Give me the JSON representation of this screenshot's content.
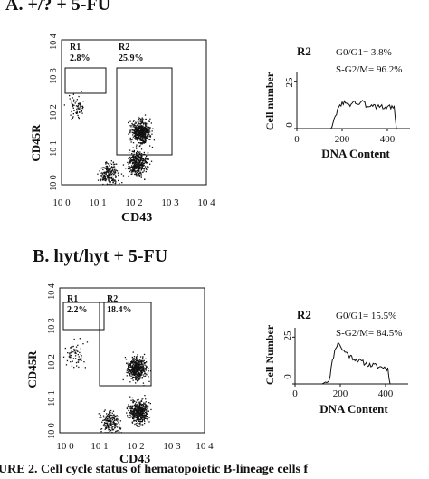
{
  "panels": [
    {
      "title": "A. +/? + 5-FU",
      "dot_plot": {
        "ylabel": "CD45R",
        "xlabel": "CD43",
        "ticks": [
          "10 0",
          "10 1",
          "10 2",
          "10 3",
          "10 4"
        ],
        "gates": [
          {
            "name": "R1",
            "percent": "2.8%"
          },
          {
            "name": "R2",
            "percent": "25.9%"
          }
        ]
      },
      "histogram": {
        "region": "R2",
        "g0g1": "G0/G1= 3.8%",
        "sg2m": "S-G2/M= 96.2%",
        "ylabel": "Cell number",
        "xlabel": "DNA Content",
        "y_ticks": [
          "0",
          "25"
        ],
        "x_ticks": [
          "0",
          "200",
          "400"
        ]
      }
    },
    {
      "title": "B. hyt/hyt + 5-FU",
      "dot_plot": {
        "ylabel": "CD45R",
        "xlabel": "CD43",
        "ticks": [
          "10 0",
          "10 1",
          "10 2",
          "10 3",
          "10 4"
        ],
        "gates": [
          {
            "name": "R1",
            "percent": "2.2%"
          },
          {
            "name": "R2",
            "percent": "18.4%"
          }
        ]
      },
      "histogram": {
        "region": "R2",
        "g0g1": "G0/G1= 15.5%",
        "sg2m": "S-G2/M= 84.5%",
        "ylabel": "Cell Number",
        "xlabel": "DNA Content",
        "y_ticks": [
          "0",
          "25"
        ],
        "x_ticks": [
          "0",
          "200",
          "400"
        ]
      }
    }
  ],
  "caption": "URE 2.    Cell cycle status of hematopoietic B-lineage cells f",
  "chart_data": [
    {
      "type": "scatter",
      "title": "A. +/? + 5-FU",
      "xlabel": "CD43",
      "ylabel": "CD45R",
      "xlim": [
        1,
        10000
      ],
      "ylim": [
        1,
        10000
      ],
      "log_scale": true,
      "gates": [
        {
          "name": "R1",
          "percent": 2.8,
          "x": [
            1,
            8
          ],
          "y": [
            60,
            300
          ]
        },
        {
          "name": "R2",
          "percent": 25.9,
          "x": [
            20,
            600
          ],
          "y": [
            8,
            300
          ]
        }
      ],
      "clusters": [
        {
          "x": 150,
          "y": 30,
          "n": 520
        },
        {
          "x": 120,
          "y": 4,
          "n": 380
        },
        {
          "x": 20,
          "y": 2,
          "n": 200
        },
        {
          "x": 2.5,
          "y": 150,
          "n": 70
        }
      ]
    },
    {
      "type": "line",
      "title": "R2",
      "xlabel": "DNA Content",
      "ylabel": "Cell number",
      "xlim": [
        0,
        500
      ],
      "ylim": [
        0,
        30
      ],
      "x": [
        0,
        100,
        150,
        170,
        190,
        210,
        230,
        250,
        270,
        290,
        310,
        330,
        350,
        370,
        390,
        410,
        430,
        440,
        450,
        470
      ],
      "y": [
        0,
        0,
        0,
        6,
        13,
        14,
        12,
        15,
        13,
        14,
        12,
        13,
        12,
        12,
        11,
        12,
        11,
        0,
        0,
        0
      ]
    },
    {
      "type": "scatter",
      "title": "B. hyt/hyt + 5-FU",
      "xlabel": "CD43",
      "ylabel": "CD45R",
      "xlim": [
        1,
        10000
      ],
      "ylim": [
        1,
        10000
      ],
      "log_scale": true,
      "gates": [
        {
          "name": "R1",
          "percent": 2.2,
          "x": [
            1,
            8
          ],
          "y": [
            60,
            300
          ]
        },
        {
          "name": "R2",
          "percent": 18.4,
          "x": [
            12,
            400
          ],
          "y": [
            10,
            300
          ]
        }
      ],
      "clusters": [
        {
          "x": 130,
          "y": 60,
          "n": 460
        },
        {
          "x": 150,
          "y": 4,
          "n": 430
        },
        {
          "x": 25,
          "y": 2,
          "n": 190
        },
        {
          "x": 2.5,
          "y": 150,
          "n": 65
        }
      ]
    },
    {
      "type": "line",
      "title": "R2",
      "xlabel": "DNA Content",
      "ylabel": "Cell Number",
      "xlim": [
        0,
        500
      ],
      "ylim": [
        0,
        30
      ],
      "x": [
        0,
        120,
        150,
        165,
        180,
        195,
        210,
        225,
        240,
        255,
        270,
        290,
        310,
        330,
        350,
        370,
        390,
        410,
        420,
        430,
        470
      ],
      "y": [
        0,
        0,
        2,
        12,
        20,
        22,
        18,
        17,
        15,
        14,
        13,
        12,
        11,
        10,
        10,
        9,
        9,
        8,
        0,
        0,
        0
      ]
    }
  ]
}
